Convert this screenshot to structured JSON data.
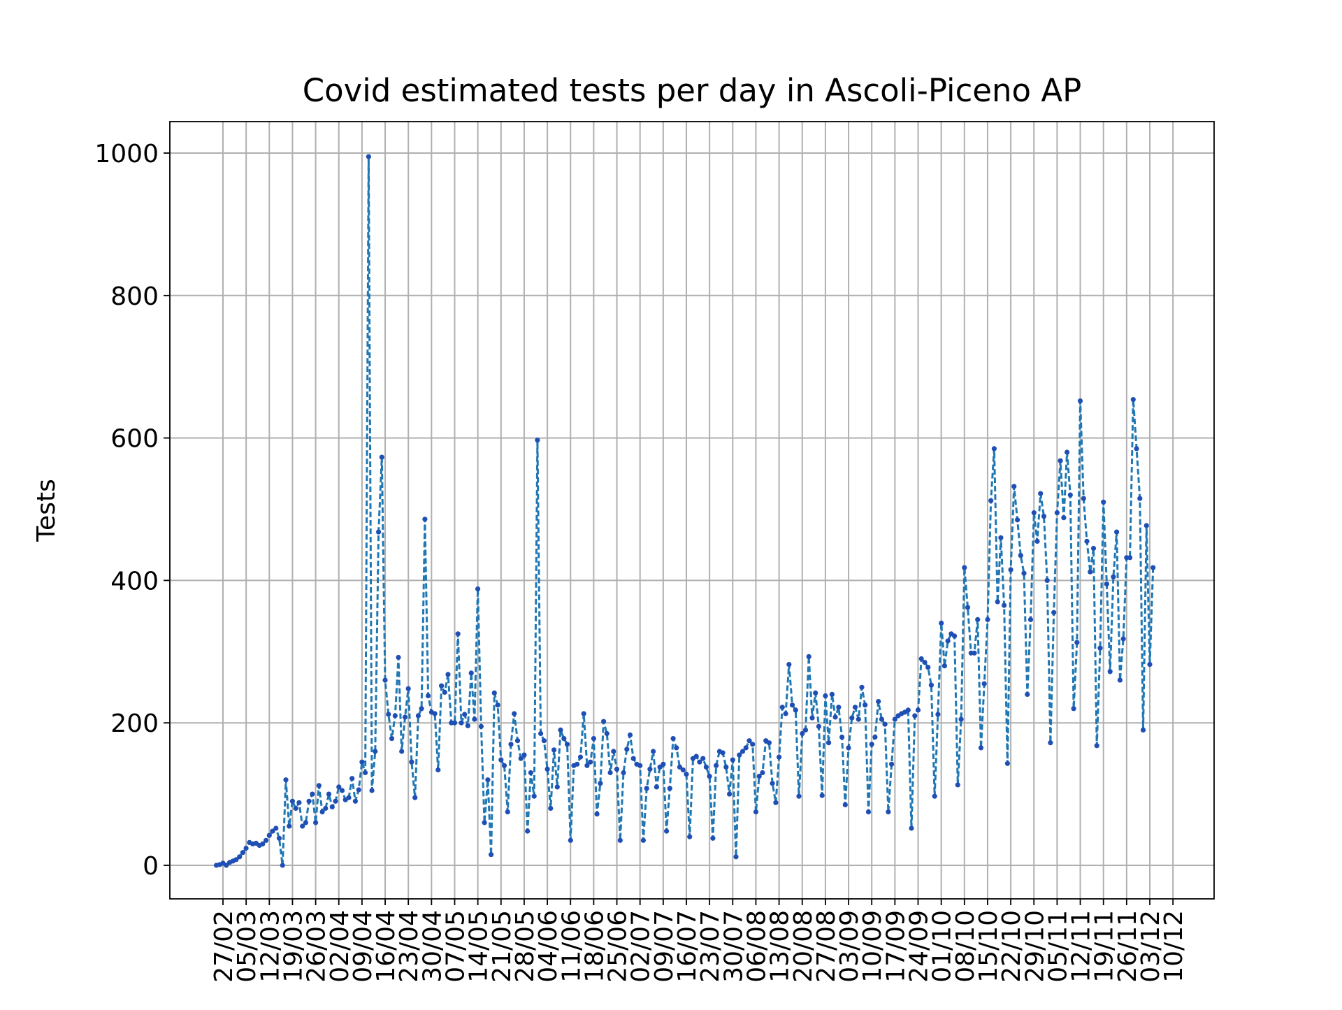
{
  "chart_data": {
    "type": "line",
    "title": "Covid estimated tests per day in Ascoli-Piceno AP",
    "xlabel": "",
    "ylabel": "Tests",
    "ylim": [
      -50,
      1045
    ],
    "yticks": [
      0,
      200,
      400,
      600,
      800,
      1000
    ],
    "grid": true,
    "line_style": "dashed",
    "marker": "dot",
    "colors": {
      "line": "#1f77b4",
      "marker": "#1f4fb4",
      "grid": "#b0b0b0"
    },
    "x_tick_labels": [
      "27/02",
      "05/03",
      "12/03",
      "19/03",
      "26/03",
      "02/04",
      "09/04",
      "16/04",
      "23/04",
      "30/04",
      "07/05",
      "14/05",
      "21/05",
      "28/05",
      "04/06",
      "11/06",
      "18/06",
      "25/06",
      "02/07",
      "09/07",
      "16/07",
      "23/07",
      "30/07",
      "06/08",
      "13/08",
      "20/08",
      "27/08",
      "03/09",
      "10/09",
      "17/09",
      "24/09",
      "01/10",
      "08/10",
      "15/10",
      "22/10",
      "29/10",
      "05/11",
      "12/11",
      "19/11",
      "26/11",
      "03/12",
      "10/12"
    ],
    "x_start": "25/02",
    "series": [
      {
        "values": [
          0,
          1,
          3,
          0,
          4,
          6,
          8,
          12,
          18,
          24,
          32,
          30,
          31,
          28,
          30,
          35,
          42,
          48,
          52,
          38,
          0,
          120,
          55,
          90,
          80,
          88,
          55,
          60,
          90,
          100,
          60,
          112,
          75,
          80,
          100,
          82,
          90,
          110,
          105,
          92,
          95,
          122,
          90,
          106,
          145,
          130,
          995,
          105,
          160,
          468,
          573,
          260,
          212,
          178,
          210,
          292,
          160,
          208,
          248,
          145,
          95,
          210,
          220,
          486,
          238,
          215,
          213,
          134,
          252,
          243,
          268,
          200,
          200,
          325,
          200,
          212,
          196,
          270,
          205,
          388,
          195,
          60,
          120,
          15,
          242,
          225,
          148,
          140,
          75,
          170,
          213,
          175,
          150,
          155,
          48,
          130,
          97,
          597,
          185,
          175,
          135,
          80,
          162,
          110,
          190,
          178,
          170,
          35,
          140,
          142,
          152,
          213,
          140,
          145,
          178,
          72,
          115,
          202,
          185,
          130,
          160,
          135,
          35,
          130,
          163,
          183,
          150,
          142,
          140,
          35,
          108,
          135,
          160,
          110,
          138,
          142,
          48,
          108,
          178,
          165,
          138,
          134,
          128,
          40,
          150,
          153,
          145,
          150,
          138,
          125,
          38,
          140,
          160,
          158,
          138,
          100,
          148,
          12,
          155,
          160,
          165,
          175,
          170,
          75,
          125,
          130,
          175,
          172,
          115,
          88,
          152,
          222,
          213,
          282,
          225,
          218,
          97,
          185,
          190,
          293,
          207,
          242,
          195,
          98,
          238,
          172,
          240,
          208,
          222,
          180,
          85,
          165,
          207,
          222,
          205,
          250,
          225,
          75,
          170,
          180,
          230,
          205,
          198,
          75,
          142,
          205,
          210,
          213,
          215,
          218,
          52,
          210,
          218,
          290,
          285,
          278,
          253,
          97,
          212,
          340,
          280,
          315,
          325,
          322,
          113,
          205,
          418,
          362,
          298,
          298,
          345,
          165,
          255,
          345,
          512,
          585,
          370,
          460,
          365,
          143,
          415,
          532,
          485,
          435,
          410,
          240,
          345,
          495,
          455,
          522,
          490,
          400,
          172,
          355,
          495,
          568,
          488,
          580,
          520,
          220,
          313,
          652,
          515,
          455,
          412,
          445,
          168,
          305,
          510,
          395,
          272,
          405,
          468,
          260,
          318,
          432,
          432,
          654,
          585,
          515,
          190,
          477,
          282,
          418
        ]
      }
    ]
  }
}
